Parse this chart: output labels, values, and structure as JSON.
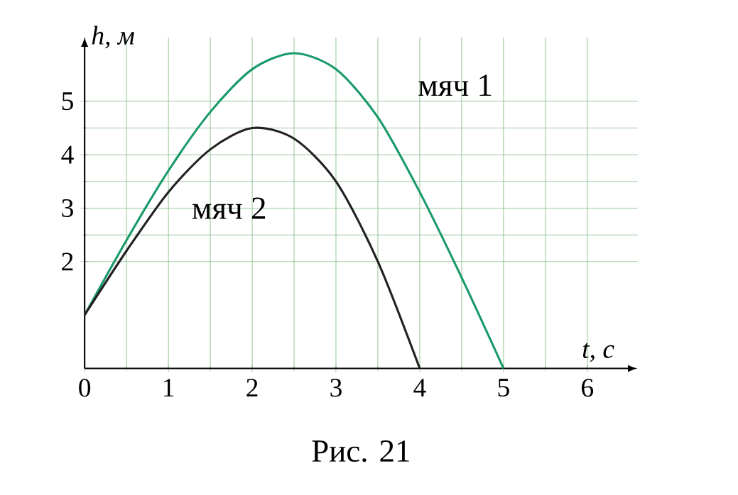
{
  "chart_data": {
    "type": "line",
    "xlabel": "t, с",
    "ylabel": "h, м",
    "annotations": [
      "Рис. 21"
    ],
    "xlim": [
      0,
      6.6
    ],
    "ylim": [
      0,
      6.2
    ],
    "xticks": [
      0,
      1,
      2,
      3,
      4,
      5,
      6
    ],
    "yticks": [
      2,
      3,
      4,
      5
    ],
    "grid": true,
    "marker": "none",
    "series": [
      {
        "name": "мяч 1",
        "color": "#1a9a6a",
        "x": [
          0,
          0.5,
          1,
          1.5,
          2,
          2.5,
          3,
          3.5,
          4,
          4.5,
          5
        ],
        "values": [
          1,
          2.4,
          3.7,
          4.8,
          5.6,
          5.9,
          5.6,
          4.7,
          3.3,
          1.7,
          0
        ]
      },
      {
        "name": "мяч 2",
        "color": "#222222",
        "x": [
          0,
          0.5,
          1,
          1.5,
          2,
          2.5,
          3,
          3.5,
          4
        ],
        "values": [
          1,
          2.2,
          3.3,
          4.1,
          4.5,
          4.3,
          3.5,
          2.0,
          0
        ]
      }
    ]
  }
}
